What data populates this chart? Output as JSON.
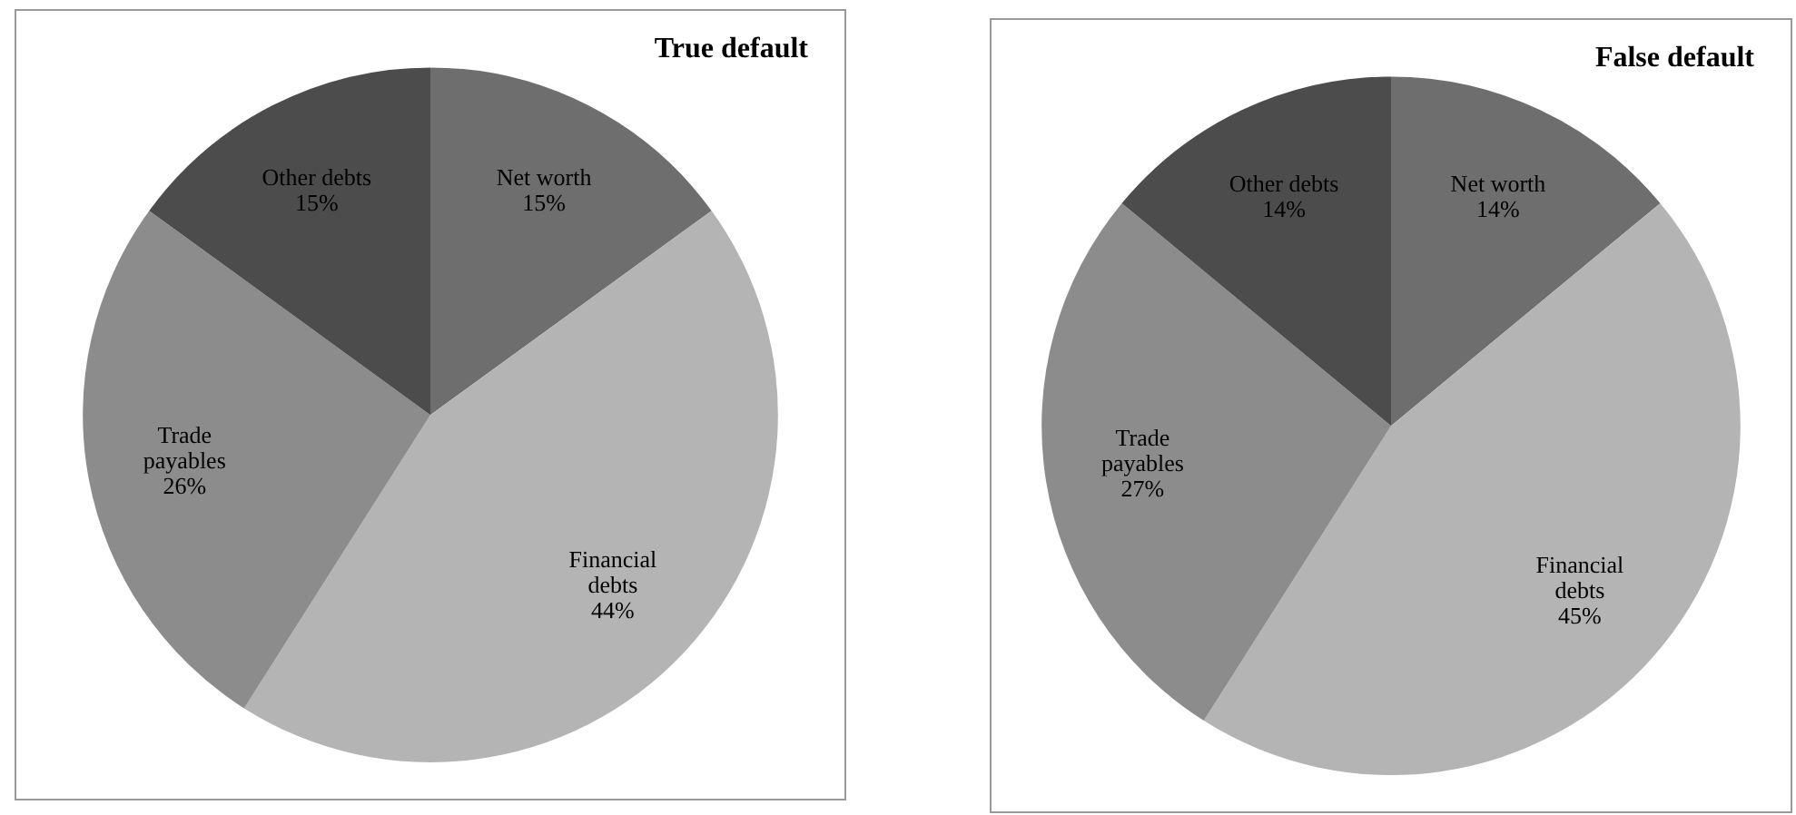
{
  "chart_data": [
    {
      "type": "pie",
      "title": "True default",
      "categories": [
        "Net worth",
        "Financial debts",
        "Trade payables",
        "Other debts"
      ],
      "values": [
        15,
        44,
        26,
        15
      ],
      "value_labels": [
        "15%",
        "44%",
        "26%",
        "15%"
      ],
      "colors": [
        "#6e6e6e",
        "#b4b4b4",
        "#8c8c8c",
        "#4c4c4c"
      ],
      "legend": false
    },
    {
      "type": "pie",
      "title": "False default",
      "categories": [
        "Net worth",
        "Financial debts",
        "Trade payables",
        "Other debts"
      ],
      "values": [
        14,
        45,
        27,
        14
      ],
      "value_labels": [
        "14%",
        "45%",
        "27%",
        "14%"
      ],
      "colors": [
        "#6e6e6e",
        "#b4b4b4",
        "#8c8c8c",
        "#4c4c4c"
      ],
      "legend": false
    }
  ]
}
